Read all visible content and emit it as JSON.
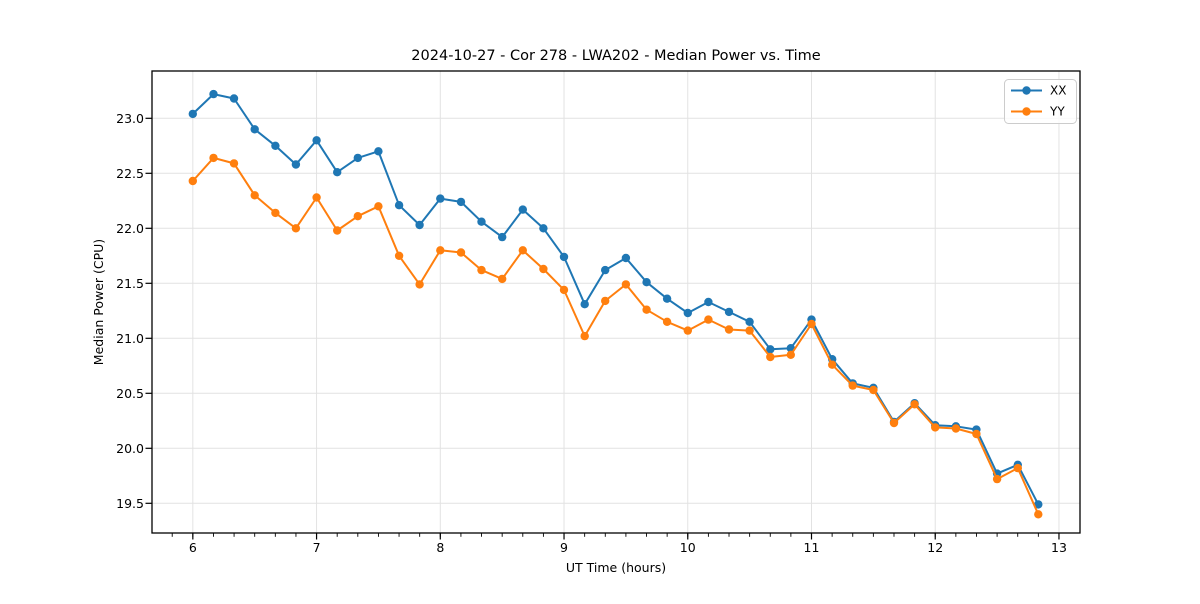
{
  "chart_data": {
    "type": "line",
    "title": "2024-10-27 - Cor 278 - LWA202 - Median Power vs. Time",
    "xlabel": "UT Time (hours)",
    "ylabel": "Median Power (CPU)",
    "xlim": [
      5.67,
      13.17
    ],
    "ylim": [
      19.23,
      23.43
    ],
    "x_ticks": [
      6,
      7,
      8,
      9,
      10,
      11,
      12,
      13
    ],
    "y_ticks": [
      19.5,
      20.0,
      20.5,
      21.0,
      21.5,
      22.0,
      22.5,
      23.0
    ],
    "x_minor_interval": 0.166667,
    "grid": true,
    "grid_color": "#e2e2e2",
    "spine_color": "#000000",
    "legend_position": "upper right",
    "x": [
      6.0,
      6.167,
      6.333,
      6.5,
      6.667,
      6.833,
      7.0,
      7.167,
      7.333,
      7.5,
      7.667,
      7.833,
      8.0,
      8.167,
      8.333,
      8.5,
      8.667,
      8.833,
      9.0,
      9.167,
      9.333,
      9.5,
      9.667,
      9.833,
      10.0,
      10.167,
      10.333,
      10.5,
      10.667,
      10.833,
      11.0,
      11.167,
      11.333,
      11.5,
      11.667,
      11.833,
      12.0,
      12.167,
      12.333,
      12.5,
      12.667,
      12.833
    ],
    "series": [
      {
        "name": "XX",
        "color": "#1f77b4",
        "values": [
          23.04,
          23.22,
          23.18,
          22.9,
          22.75,
          22.58,
          22.8,
          22.51,
          22.64,
          22.7,
          22.21,
          22.03,
          22.27,
          22.24,
          22.06,
          21.92,
          22.17,
          22.0,
          21.74,
          21.31,
          21.62,
          21.73,
          21.51,
          21.36,
          21.23,
          21.33,
          21.24,
          21.15,
          20.9,
          20.91,
          21.17,
          20.81,
          20.59,
          20.55,
          20.24,
          20.41,
          20.21,
          20.2,
          20.17,
          19.77,
          19.85,
          19.49
        ]
      },
      {
        "name": "YY",
        "color": "#ff7f0e",
        "values": [
          22.43,
          22.64,
          22.59,
          22.3,
          22.14,
          22.0,
          22.28,
          21.98,
          22.11,
          22.2,
          21.75,
          21.49,
          21.8,
          21.78,
          21.62,
          21.54,
          21.8,
          21.63,
          21.44,
          21.02,
          21.34,
          21.49,
          21.26,
          21.15,
          21.07,
          21.17,
          21.08,
          21.07,
          20.83,
          20.85,
          21.13,
          20.76,
          20.57,
          20.53,
          20.23,
          20.4,
          20.19,
          20.18,
          20.13,
          19.72,
          19.82,
          19.4
        ]
      }
    ]
  }
}
